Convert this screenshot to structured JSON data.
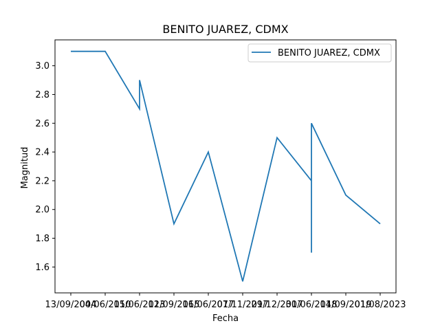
{
  "chart_data": {
    "type": "line",
    "title": "BENITO JUAREZ, CDMX",
    "xlabel": "Fecha",
    "ylabel": "Magnitud",
    "ylim": [
      1.42,
      3.18
    ],
    "y_ticks": [
      1.6,
      1.8,
      2.0,
      2.2,
      2.4,
      2.6,
      2.8,
      3.0
    ],
    "y_tick_labels": [
      "1.6",
      "1.8",
      "2.0",
      "2.2",
      "2.4",
      "2.6",
      "2.8",
      "3.0"
    ],
    "x_tick_labels": [
      "13/09/2004",
      "04/06/2010",
      "15/06/2013",
      "12/09/2015",
      "16/06/2017",
      "07/11/2017",
      "29/12/2017",
      "30/06/2018",
      "14/09/2019",
      "01/08/2023"
    ],
    "legend_position": "top-right",
    "grid": false,
    "series": [
      {
        "name": "BENITO JUAREZ, CDMX",
        "color": "#1f77b4",
        "x": [
          "13/09/2004",
          "04/06/2010",
          "15/06/2013",
          "15/06/2013",
          "12/09/2015",
          "16/06/2017",
          "07/11/2017",
          "29/12/2017",
          "30/06/2018",
          "30/06/2018",
          "30/06/2018",
          "14/09/2019",
          "01/08/2023"
        ],
        "values": [
          3.1,
          3.1,
          2.7,
          2.9,
          1.9,
          2.4,
          1.5,
          2.5,
          2.2,
          1.7,
          2.6,
          2.1,
          1.9
        ]
      }
    ]
  }
}
